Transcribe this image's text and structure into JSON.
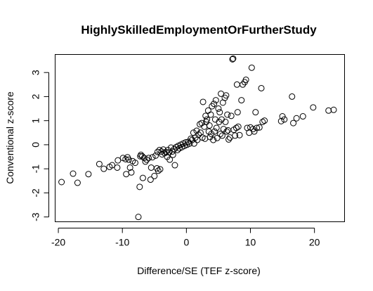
{
  "chart_data": {
    "type": "scatter",
    "title": "HighlySkilledEmploymentOrFurtherStudy",
    "xlabel": "Difference/SE (TEF z-score)",
    "ylabel": "Conventional z-score",
    "xlim": [
      -20.5,
      24.7
    ],
    "ylim": [
      -3.2,
      3.75
    ],
    "xticks": [
      -20,
      -10,
      0,
      10,
      20
    ],
    "yticks": [
      -3,
      -2,
      -1,
      0,
      1,
      2,
      3
    ],
    "xtick_labels": [
      "-20",
      "-10",
      "0",
      "10",
      "20"
    ],
    "ytick_labels": [
      "-3",
      "-2",
      "-1",
      "0",
      "1",
      "2",
      "3"
    ],
    "grid": false,
    "legend": "none",
    "marker": "open-circle",
    "colors": {
      "marker": "#000000",
      "axis": "#000000",
      "background": "#ffffff"
    },
    "points": [
      [
        -19.5,
        -1.55
      ],
      [
        -17.7,
        -1.2
      ],
      [
        -17.0,
        -1.58
      ],
      [
        -15.3,
        -1.22
      ],
      [
        -13.6,
        -0.8
      ],
      [
        -12.9,
        -1.0
      ],
      [
        -12.0,
        -0.92
      ],
      [
        -11.6,
        -0.85
      ],
      [
        -10.8,
        -0.95
      ],
      [
        -10.7,
        -0.65
      ],
      [
        -9.9,
        -0.55
      ],
      [
        -9.5,
        -0.6
      ],
      [
        -9.4,
        -1.22
      ],
      [
        -9.2,
        -0.52
      ],
      [
        -9.0,
        -0.62
      ],
      [
        -8.8,
        -0.95
      ],
      [
        -8.6,
        -1.15
      ],
      [
        -8.4,
        -0.68
      ],
      [
        -8.0,
        -0.75
      ],
      [
        -7.5,
        -3.0
      ],
      [
        -7.3,
        -1.75
      ],
      [
        -7.2,
        -0.48
      ],
      [
        -7.1,
        -0.42
      ],
      [
        -6.9,
        -0.48
      ],
      [
        -6.8,
        -1.38
      ],
      [
        -6.6,
        -0.55
      ],
      [
        -6.4,
        -0.7
      ],
      [
        -6.2,
        -0.62
      ],
      [
        -5.9,
        -0.55
      ],
      [
        -5.6,
        -1.45
      ],
      [
        -5.5,
        -0.95
      ],
      [
        -5.3,
        -0.52
      ],
      [
        -5.0,
        -1.3
      ],
      [
        -4.8,
        -0.45
      ],
      [
        -4.6,
        -0.98
      ],
      [
        -4.5,
        -0.3
      ],
      [
        -4.4,
        -1.08
      ],
      [
        -4.2,
        -0.22
      ],
      [
        -4.1,
        -1.02
      ],
      [
        -3.9,
        -0.28
      ],
      [
        -3.8,
        -0.4
      ],
      [
        -3.6,
        -0.2
      ],
      [
        -3.4,
        -0.35
      ],
      [
        -3.2,
        -0.3
      ],
      [
        -3.0,
        -0.5
      ],
      [
        -2.9,
        -0.22
      ],
      [
        -2.7,
        -0.32
      ],
      [
        -2.6,
        -0.62
      ],
      [
        -2.4,
        -0.12
      ],
      [
        -2.2,
        -0.28
      ],
      [
        -2.1,
        -0.42
      ],
      [
        -1.9,
        -0.18
      ],
      [
        -1.8,
        -0.85
      ],
      [
        -1.6,
        -0.1
      ],
      [
        -1.4,
        -0.22
      ],
      [
        -1.3,
        -0.05
      ],
      [
        -1.1,
        -0.15
      ],
      [
        -0.9,
        0.0
      ],
      [
        -0.7,
        -0.1
      ],
      [
        -0.5,
        0.05
      ],
      [
        -0.3,
        -0.05
      ],
      [
        -0.1,
        0.1
      ],
      [
        0.1,
        0.0
      ],
      [
        0.3,
        0.12
      ],
      [
        0.5,
        0.05
      ],
      [
        0.7,
        0.25
      ],
      [
        0.9,
        0.2
      ],
      [
        1.1,
        0.5
      ],
      [
        1.2,
        0.05
      ],
      [
        1.4,
        0.3
      ],
      [
        1.6,
        0.58
      ],
      [
        1.7,
        0.2
      ],
      [
        1.9,
        0.42
      ],
      [
        2.1,
        0.85
      ],
      [
        2.2,
        0.5
      ],
      [
        2.4,
        0.9
      ],
      [
        2.5,
        0.3
      ],
      [
        2.6,
        1.78
      ],
      [
        2.8,
        0.75
      ],
      [
        2.9,
        0.25
      ],
      [
        3.0,
        1.2
      ],
      [
        3.1,
        0.95
      ],
      [
        3.2,
        1.05
      ],
      [
        3.4,
        1.42
      ],
      [
        3.5,
        0.55
      ],
      [
        3.6,
        0.8
      ],
      [
        3.7,
        0.32
      ],
      [
        3.8,
        1.25
      ],
      [
        3.9,
        0.45
      ],
      [
        4.0,
        1.6
      ],
      [
        4.2,
        0.2
      ],
      [
        4.3,
        1.7
      ],
      [
        4.4,
        0.55
      ],
      [
        4.5,
        1.05
      ],
      [
        4.6,
        1.85
      ],
      [
        4.7,
        0.7
      ],
      [
        4.8,
        0.28
      ],
      [
        5.0,
        1.5
      ],
      [
        5.1,
        0.95
      ],
      [
        5.2,
        1.35
      ],
      [
        5.3,
        0.45
      ],
      [
        5.4,
        2.12
      ],
      [
        5.5,
        1.05
      ],
      [
        5.6,
        0.38
      ],
      [
        5.7,
        1.75
      ],
      [
        5.8,
        0.65
      ],
      [
        6.0,
        1.95
      ],
      [
        6.1,
        0.95
      ],
      [
        6.2,
        2.05
      ],
      [
        6.3,
        0.55
      ],
      [
        6.4,
        1.25
      ],
      [
        6.5,
        0.6
      ],
      [
        6.6,
        0.22
      ],
      [
        6.8,
        0.3
      ],
      [
        7.0,
        1.2
      ],
      [
        7.2,
        3.55
      ],
      [
        7.3,
        3.58
      ],
      [
        7.4,
        0.62
      ],
      [
        7.6,
        0.38
      ],
      [
        7.8,
        0.7
      ],
      [
        7.9,
        2.5
      ],
      [
        8.0,
        1.35
      ],
      [
        8.1,
        0.75
      ],
      [
        8.3,
        0.4
      ],
      [
        8.6,
        1.85
      ],
      [
        8.8,
        2.5
      ],
      [
        9.1,
        2.6
      ],
      [
        9.3,
        2.7
      ],
      [
        9.5,
        0.7
      ],
      [
        9.8,
        0.5
      ],
      [
        10.0,
        0.72
      ],
      [
        10.2,
        3.2
      ],
      [
        10.4,
        0.65
      ],
      [
        10.6,
        0.55
      ],
      [
        10.8,
        1.35
      ],
      [
        11.0,
        0.7
      ],
      [
        11.4,
        0.72
      ],
      [
        11.7,
        2.35
      ],
      [
        11.9,
        0.95
      ],
      [
        12.2,
        1.0
      ],
      [
        14.8,
        0.98
      ],
      [
        15.0,
        1.18
      ],
      [
        15.3,
        1.05
      ],
      [
        16.5,
        2.0
      ],
      [
        16.7,
        0.9
      ],
      [
        17.2,
        1.1
      ],
      [
        18.2,
        1.18
      ],
      [
        19.8,
        1.55
      ],
      [
        22.2,
        1.42
      ],
      [
        23.0,
        1.45
      ]
    ]
  }
}
